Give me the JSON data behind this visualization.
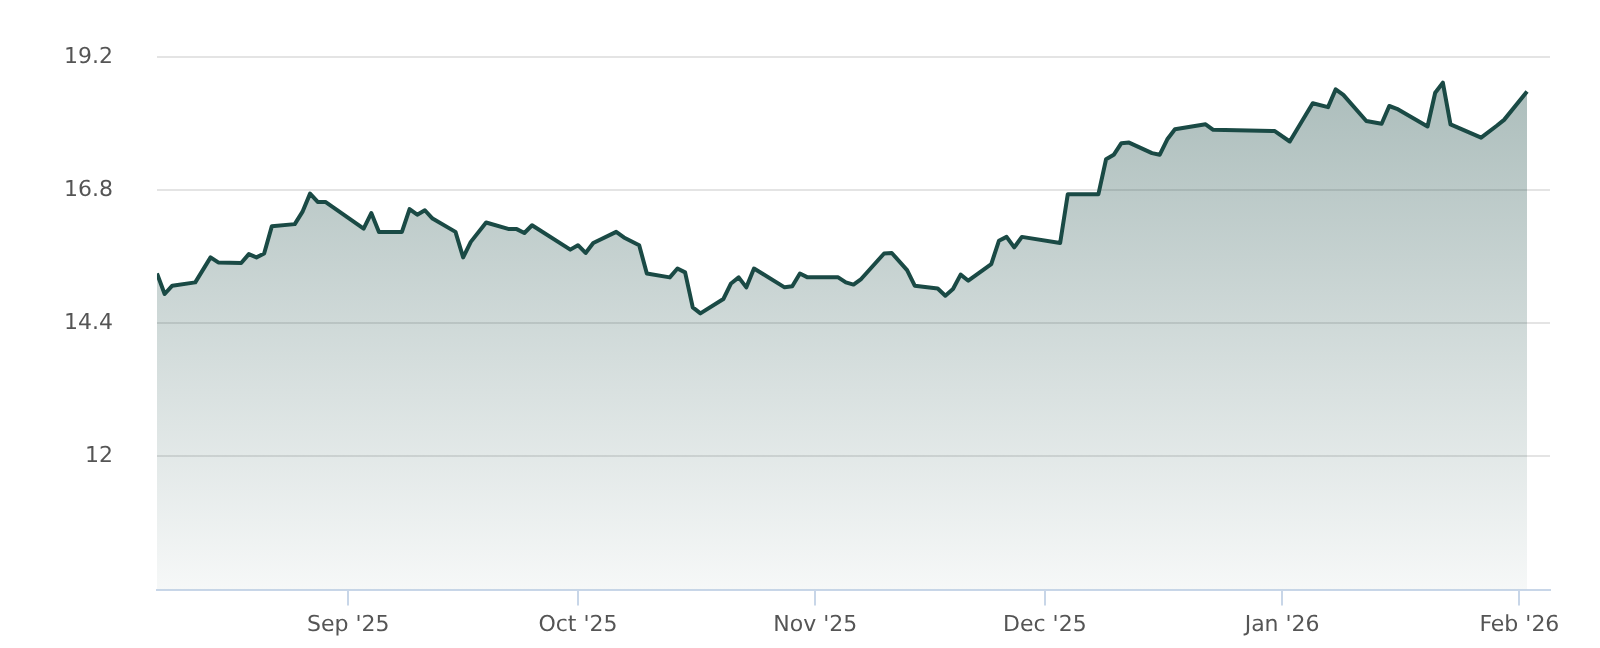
{
  "chart_data": {
    "type": "area",
    "grid": "y",
    "legend": false,
    "marker": "none",
    "line_style": "solid",
    "xlim": [
      "2025-08-07",
      "2026-02-05"
    ],
    "xticks": [
      {
        "value": "2025-09-01",
        "label": "Sep '25"
      },
      {
        "value": "2025-10-01",
        "label": "Oct '25"
      },
      {
        "value": "2025-11-01",
        "label": "Nov '25"
      },
      {
        "value": "2025-12-01",
        "label": "Dec '25"
      },
      {
        "value": "2026-01-01",
        "label": "Jan '26"
      },
      {
        "value": "2026-02-01",
        "label": "Feb '26"
      }
    ],
    "ylim": [
      9.6,
      19.2
    ],
    "yticks": [
      12,
      14.4,
      16.8,
      19.2
    ],
    "x": [
      "2025-08-07",
      "2025-08-08",
      "2025-08-09",
      "2025-08-12",
      "2025-08-14",
      "2025-08-15",
      "2025-08-18",
      "2025-08-19",
      "2025-08-20",
      "2025-08-21",
      "2025-08-22",
      "2025-08-25",
      "2025-08-26",
      "2025-08-27",
      "2025-08-28",
      "2025-08-29",
      "2025-09-03",
      "2025-09-04",
      "2025-09-05",
      "2025-09-08",
      "2025-09-09",
      "2025-09-10",
      "2025-09-11",
      "2025-09-12",
      "2025-09-15",
      "2025-09-16",
      "2025-09-17",
      "2025-09-19",
      "2025-09-22",
      "2025-09-23",
      "2025-09-24",
      "2025-09-25",
      "2025-09-30",
      "2025-10-01",
      "2025-10-02",
      "2025-10-03",
      "2025-10-06",
      "2025-10-07",
      "2025-10-09",
      "2025-10-10",
      "2025-10-13",
      "2025-10-14",
      "2025-10-15",
      "2025-10-16",
      "2025-10-17",
      "2025-10-20",
      "2025-10-21",
      "2025-10-22",
      "2025-10-23",
      "2025-10-24",
      "2025-10-28",
      "2025-10-29",
      "2025-10-30",
      "2025-10-31",
      "2025-11-04",
      "2025-11-05",
      "2025-11-06",
      "2025-11-07",
      "2025-11-10",
      "2025-11-11",
      "2025-11-13",
      "2025-11-14",
      "2025-11-17",
      "2025-11-18",
      "2025-11-19",
      "2025-11-20",
      "2025-11-21",
      "2025-11-24",
      "2025-11-25",
      "2025-11-26",
      "2025-11-27",
      "2025-11-28",
      "2025-12-03",
      "2025-12-04",
      "2025-12-08",
      "2025-12-09",
      "2025-12-10",
      "2025-12-11",
      "2025-12-12",
      "2025-12-15",
      "2025-12-16",
      "2025-12-17",
      "2025-12-18",
      "2025-12-22",
      "2025-12-23",
      "2025-12-31",
      "2026-01-02",
      "2026-01-05",
      "2026-01-07",
      "2026-01-08",
      "2026-01-09",
      "2026-01-12",
      "2026-01-14",
      "2026-01-15",
      "2026-01-16",
      "2026-01-20",
      "2026-01-21",
      "2026-01-22",
      "2026-01-23",
      "2026-01-27",
      "2026-01-29",
      "2026-01-30",
      "2026-02-02"
    ],
    "series": [
      {
        "color": "#1a4a45",
        "values": [
          15.3,
          14.93,
          15.08,
          15.14,
          15.59,
          15.5,
          15.49,
          15.65,
          15.59,
          15.66,
          16.15,
          16.19,
          16.41,
          16.74,
          16.59,
          16.59,
          16.11,
          16.39,
          16.05,
          16.05,
          16.46,
          16.36,
          16.44,
          16.29,
          16.05,
          15.59,
          15.87,
          16.22,
          16.1,
          16.1,
          16.03,
          16.17,
          15.73,
          15.81,
          15.67,
          15.85,
          16.05,
          15.95,
          15.81,
          15.3,
          15.23,
          15.39,
          15.32,
          14.69,
          14.58,
          14.84,
          15.12,
          15.23,
          15.05,
          15.39,
          15.05,
          15.07,
          15.3,
          15.23,
          15.23,
          15.14,
          15.1,
          15.2,
          15.66,
          15.67,
          15.36,
          15.08,
          15.03,
          14.9,
          15.02,
          15.28,
          15.17,
          15.47,
          15.89,
          15.96,
          15.77,
          15.96,
          15.85,
          16.73,
          16.73,
          17.36,
          17.44,
          17.65,
          17.66,
          17.47,
          17.44,
          17.72,
          17.9,
          17.99,
          17.89,
          17.87,
          17.68,
          18.37,
          18.3,
          18.62,
          18.52,
          18.05,
          18.0,
          18.32,
          18.27,
          17.95,
          18.56,
          18.74,
          17.99,
          17.75,
          17.96,
          18.07,
          18.58
        ]
      }
    ]
  }
}
